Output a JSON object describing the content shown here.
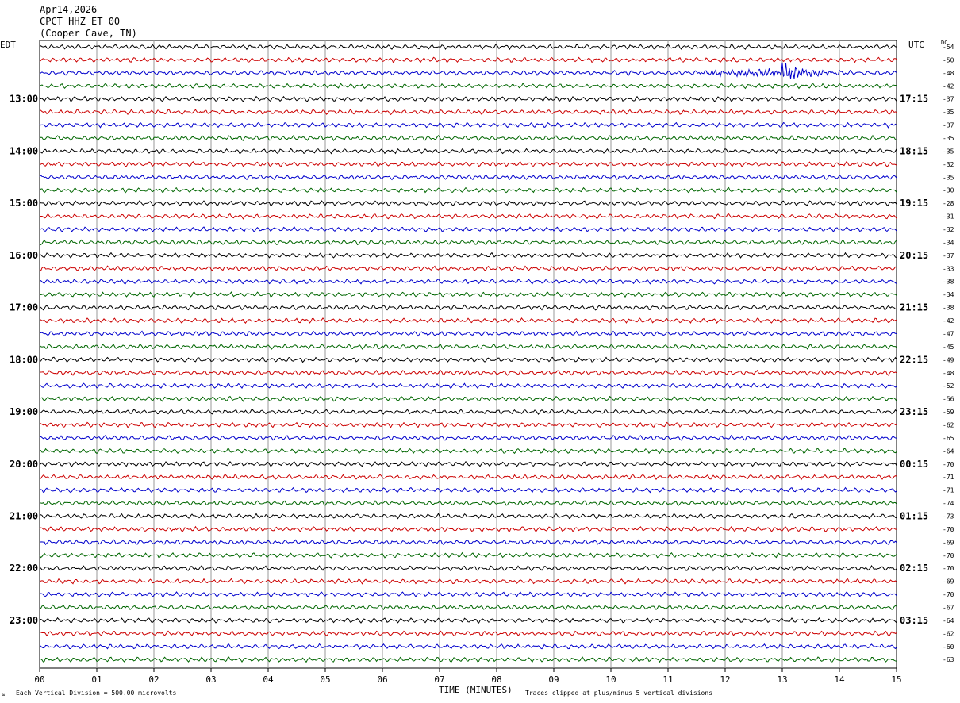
{
  "header": {
    "date": "Apr14,2026",
    "station": "CPCT HHZ ET 00",
    "location": "(Cooper Cave, TN)"
  },
  "chart_data": {
    "type": "line",
    "left_axis_label": "EDT",
    "right_axis_label": "UTC",
    "dc_label": "DC",
    "x_axis_label": "TIME (MINUTES)",
    "x_ticks": [
      "00",
      "01",
      "02",
      "03",
      "04",
      "05",
      "06",
      "07",
      "08",
      "09",
      "10",
      "11",
      "12",
      "13",
      "14",
      "15"
    ],
    "xlim": [
      0,
      15
    ],
    "left_hour_labels": [
      {
        "label": "13:00",
        "row": 4
      },
      {
        "label": "14:00",
        "row": 8
      },
      {
        "label": "15:00",
        "row": 12
      },
      {
        "label": "16:00",
        "row": 16
      },
      {
        "label": "17:00",
        "row": 20
      },
      {
        "label": "18:00",
        "row": 24
      },
      {
        "label": "19:00",
        "row": 28
      },
      {
        "label": "20:00",
        "row": 32
      },
      {
        "label": "21:00",
        "row": 36
      },
      {
        "label": "22:00",
        "row": 40
      },
      {
        "label": "23:00",
        "row": 44
      }
    ],
    "right_hour_labels": [
      {
        "label": "17:15",
        "row": 4
      },
      {
        "label": "18:15",
        "row": 8
      },
      {
        "label": "19:15",
        "row": 12
      },
      {
        "label": "20:15",
        "row": 16
      },
      {
        "label": "21:15",
        "row": 20
      },
      {
        "label": "22:15",
        "row": 24
      },
      {
        "label": "23:15",
        "row": 28
      },
      {
        "label": "00:15",
        "row": 32
      },
      {
        "label": "01:15",
        "row": 36
      },
      {
        "label": "02:15",
        "row": 40
      },
      {
        "label": "03:15",
        "row": 44
      }
    ],
    "dc_offsets": [
      "-54",
      "-50",
      "-48",
      "-42",
      "-37",
      "-35",
      "-37",
      "-35",
      "-35",
      "-32",
      "-35",
      "-30",
      "-28",
      "-31",
      "-32",
      "-34",
      "-37",
      "-33",
      "-38",
      "-34",
      "-38",
      "-42",
      "-47",
      "-45",
      "-49",
      "-48",
      "-52",
      "-56",
      "-59",
      "-62",
      "-65",
      "-64",
      "-70",
      "-71",
      "-71",
      "-74",
      "-73",
      "-70",
      "-69",
      "-70",
      "-70",
      "-69",
      "-70",
      "-67",
      "-64",
      "-62",
      "-60",
      "-63"
    ],
    "trace_colors": [
      "#000000",
      "#cc0000",
      "#0000cc",
      "#006600"
    ],
    "event": {
      "row": 2,
      "start_min": 11.5,
      "peak_min": 13.0,
      "end_min": 14.3,
      "amplitude_divisions": 2.2
    },
    "footer_left": "Each Vertical Division =  500.00 microvolts",
    "footer_right": "Traces clipped at plus/minus 5 vertical divisions",
    "footer_mark": "≈"
  }
}
